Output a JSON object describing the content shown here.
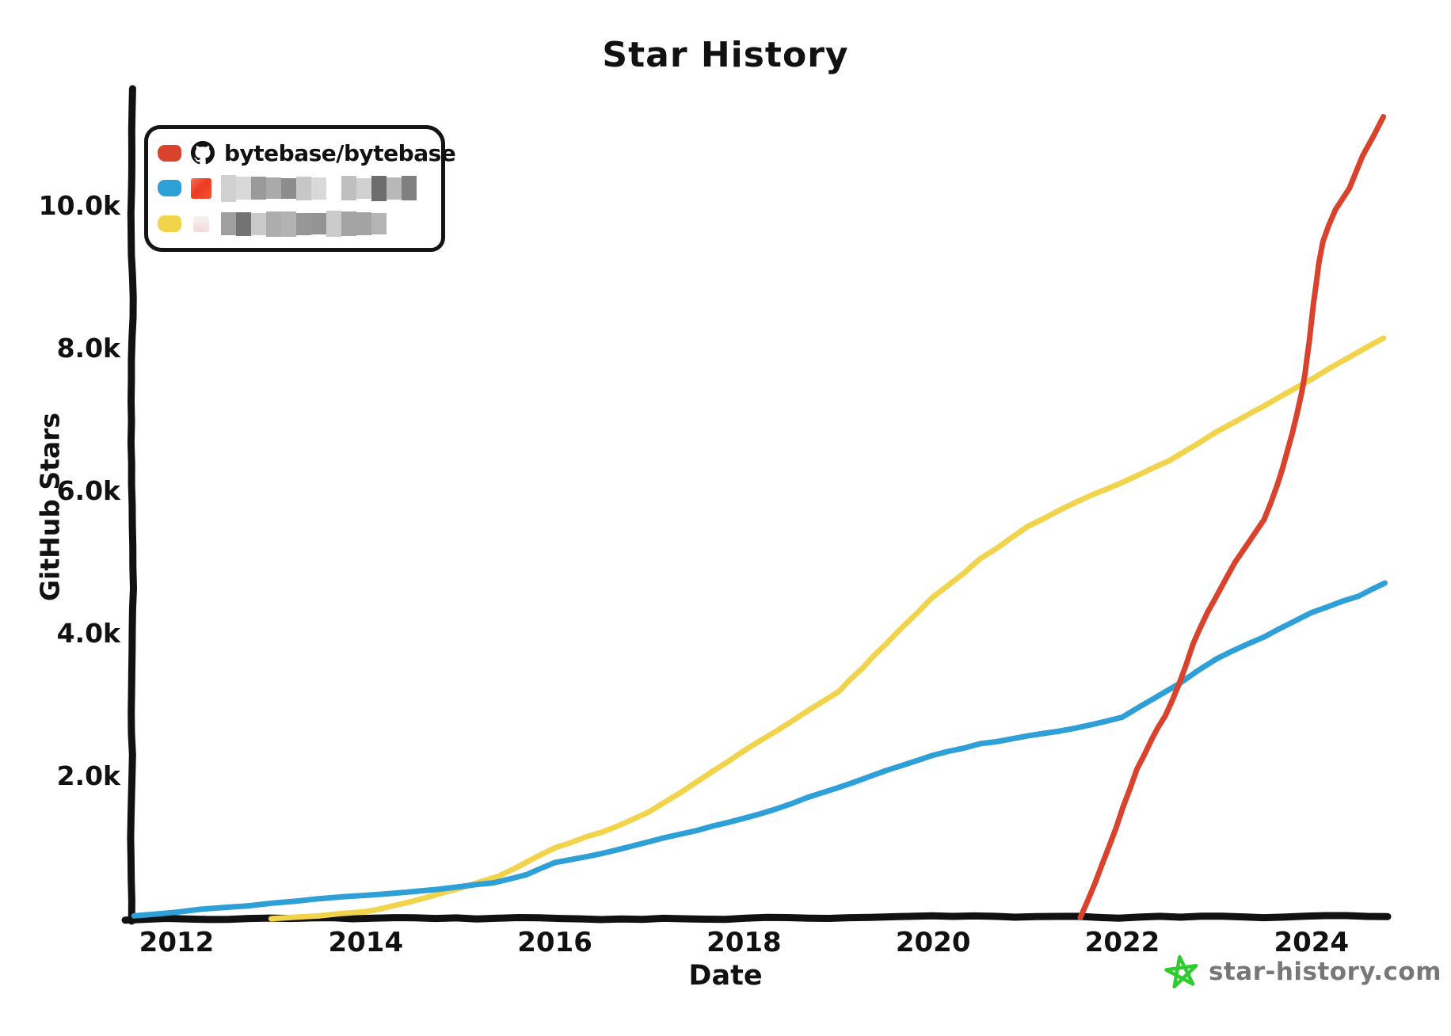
{
  "title": "Star History",
  "legend": {
    "entries": [
      {
        "label": "bytebase/bytebase",
        "redacted": false,
        "icon": "github-octocat",
        "color": "#D9432E"
      },
      {
        "label": "",
        "redacted": true,
        "icon": "blurred-orange-logo",
        "color": "#2E9FD7"
      },
      {
        "label": "",
        "redacted": true,
        "icon": "blurred-pink-logo",
        "color": "#F1D44C"
      }
    ]
  },
  "watermark": {
    "text": "star-history.com",
    "star_color": "#2ECC2E",
    "text_color": "#777777"
  },
  "chart_data": {
    "type": "line",
    "title": "Star History",
    "xlabel": "Date",
    "ylabel": "GitHub Stars",
    "x_unit": "year",
    "y_unit": "github_stars",
    "xlim": [
      2011.5,
      2024.85
    ],
    "ylim": [
      0,
      11600
    ],
    "grid": false,
    "legend_position": "top-left",
    "x_ticks": [
      {
        "value": 2012,
        "label": "2012"
      },
      {
        "value": 2014,
        "label": "2014"
      },
      {
        "value": 2016,
        "label": "2016"
      },
      {
        "value": 2018,
        "label": "2018"
      },
      {
        "value": 2020,
        "label": "2020"
      },
      {
        "value": 2022,
        "label": "2022"
      },
      {
        "value": 2024,
        "label": "2024"
      }
    ],
    "y_ticks": [
      {
        "value": 2000,
        "label": "2.0k"
      },
      {
        "value": 4000,
        "label": "4.0k"
      },
      {
        "value": 6000,
        "label": "6.0k"
      },
      {
        "value": 8000,
        "label": "8.0k"
      },
      {
        "value": 10000,
        "label": "10.0k"
      }
    ],
    "series": [
      {
        "name": "bytebase/bytebase",
        "color": "#D9432E",
        "points": [
          [
            2021.55,
            20
          ],
          [
            2021.7,
            500
          ],
          [
            2021.85,
            1000
          ],
          [
            2022.0,
            1550
          ],
          [
            2022.15,
            2100
          ],
          [
            2022.3,
            2500
          ],
          [
            2022.45,
            2850
          ],
          [
            2022.6,
            3300
          ],
          [
            2022.75,
            3850
          ],
          [
            2022.9,
            4300
          ],
          [
            2023.05,
            4650
          ],
          [
            2023.2,
            5000
          ],
          [
            2023.35,
            5300
          ],
          [
            2023.5,
            5600
          ],
          [
            2023.65,
            6100
          ],
          [
            2023.8,
            6800
          ],
          [
            2023.9,
            7400
          ],
          [
            2023.98,
            8100
          ],
          [
            2024.05,
            8900
          ],
          [
            2024.12,
            9500
          ],
          [
            2024.25,
            9950
          ],
          [
            2024.4,
            10250
          ],
          [
            2024.55,
            10700
          ],
          [
            2024.76,
            11250
          ]
        ]
      },
      {
        "name": "(redacted repo, blue line)",
        "color": "#2E9FD7",
        "points": [
          [
            2011.55,
            40
          ],
          [
            2012,
            100
          ],
          [
            2012.5,
            160
          ],
          [
            2013,
            220
          ],
          [
            2013.5,
            280
          ],
          [
            2014,
            330
          ],
          [
            2014.5,
            400
          ],
          [
            2015,
            460
          ],
          [
            2015.35,
            520
          ],
          [
            2015.7,
            620
          ],
          [
            2016,
            780
          ],
          [
            2016.5,
            930
          ],
          [
            2017,
            1080
          ],
          [
            2017.5,
            1250
          ],
          [
            2018,
            1400
          ],
          [
            2018.5,
            1620
          ],
          [
            2019,
            1850
          ],
          [
            2019.5,
            2080
          ],
          [
            2020,
            2280
          ],
          [
            2020.5,
            2450
          ],
          [
            2021,
            2560
          ],
          [
            2021.5,
            2680
          ],
          [
            2022,
            2820
          ],
          [
            2022.6,
            3300
          ],
          [
            2023,
            3650
          ],
          [
            2023.5,
            3950
          ],
          [
            2024,
            4280
          ],
          [
            2024.5,
            4520
          ],
          [
            2024.78,
            4700
          ]
        ]
      },
      {
        "name": "(redacted repo, yellow line)",
        "color": "#F1D44C",
        "points": [
          [
            2013.0,
            10
          ],
          [
            2013.5,
            50
          ],
          [
            2014,
            100
          ],
          [
            2014.5,
            240
          ],
          [
            2015,
            420
          ],
          [
            2015.4,
            580
          ],
          [
            2016,
            1000
          ],
          [
            2016.5,
            1220
          ],
          [
            2017,
            1500
          ],
          [
            2017.5,
            1920
          ],
          [
            2018,
            2350
          ],
          [
            2018.5,
            2750
          ],
          [
            2019,
            3180
          ],
          [
            2019.5,
            3850
          ],
          [
            2020,
            4500
          ],
          [
            2020.5,
            5050
          ],
          [
            2021,
            5500
          ],
          [
            2021.5,
            5850
          ],
          [
            2022,
            6120
          ],
          [
            2022.5,
            6420
          ],
          [
            2023,
            6850
          ],
          [
            2023.5,
            7200
          ],
          [
            2024,
            7580
          ],
          [
            2024.4,
            7880
          ],
          [
            2024.76,
            8150
          ]
        ]
      }
    ]
  }
}
